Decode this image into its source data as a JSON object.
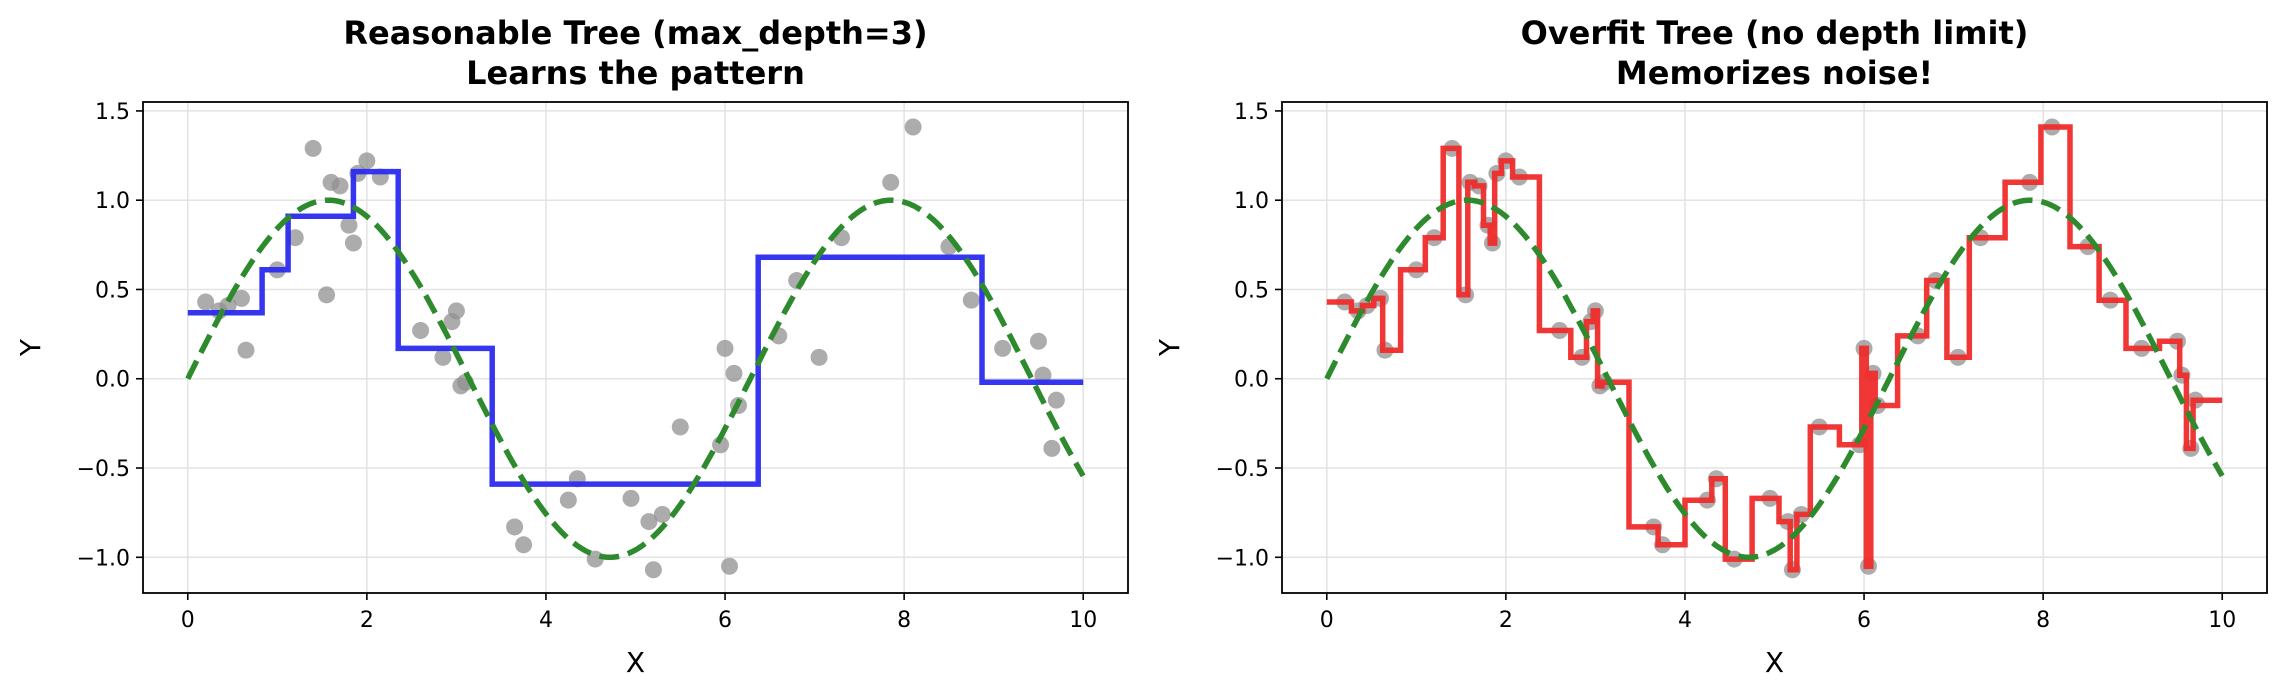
{
  "chart_data": [
    {
      "type": "line",
      "title": [
        "Reasonable Tree (max_depth=3)",
        "Learns the pattern"
      ],
      "xlabel": "X",
      "ylabel": "Y",
      "xlim": [
        -0.5,
        10.5
      ],
      "ylim": [
        -1.2,
        1.55
      ],
      "xticks": [
        0,
        2,
        4,
        6,
        8,
        10
      ],
      "yticks": [
        -1.0,
        -0.5,
        0.0,
        0.5,
        1.0,
        1.5
      ],
      "ytick_labels": [
        "−1.0",
        "−0.5",
        "0.0",
        "0.5",
        "1.0",
        "1.5"
      ],
      "grid": true,
      "colors": {
        "true_function": "#2d8a2d",
        "prediction": "#2b2bf0",
        "points": "#909090"
      },
      "scatter": {
        "x": [
          0.2,
          0.35,
          0.45,
          0.6,
          0.65,
          1.0,
          1.2,
          1.4,
          1.55,
          1.6,
          1.7,
          1.8,
          1.85,
          1.9,
          2.0,
          2.15,
          2.6,
          2.85,
          2.95,
          3.0,
          3.05,
          3.1,
          3.65,
          3.75,
          4.25,
          4.35,
          4.55,
          4.95,
          5.15,
          5.2,
          5.3,
          5.5,
          5.95,
          6.0,
          6.05,
          6.1,
          6.15,
          6.6,
          6.8,
          7.05,
          7.3,
          7.85,
          8.1,
          8.5,
          8.75,
          9.1,
          9.5,
          9.55,
          9.65,
          9.7
        ],
        "y": [
          0.43,
          0.38,
          0.41,
          0.45,
          0.16,
          0.61,
          0.79,
          1.29,
          0.47,
          1.1,
          1.08,
          0.86,
          0.76,
          1.15,
          1.22,
          1.13,
          0.27,
          0.12,
          0.32,
          0.38,
          -0.04,
          -0.02,
          -0.83,
          -0.93,
          -0.68,
          -0.56,
          -1.01,
          -0.67,
          -0.8,
          -1.07,
          -0.76,
          -0.27,
          -0.37,
          0.17,
          -1.05,
          0.03,
          -0.15,
          0.24,
          0.55,
          0.12,
          0.79,
          1.1,
          1.41,
          0.74,
          0.44,
          0.17,
          0.21,
          0.02,
          -0.39,
          -0.12
        ]
      },
      "true_function": {
        "name": "sin",
        "x_range": [
          0,
          10
        ]
      },
      "prediction_step": {
        "x": [
          0,
          0.83,
          0.83,
          1.12,
          1.12,
          1.85,
          1.85,
          2.35,
          2.35,
          3.4,
          3.4,
          6.37,
          6.37,
          8.87,
          8.87,
          10
        ],
        "y": [
          0.37,
          0.37,
          0.61,
          0.61,
          0.91,
          0.91,
          1.16,
          1.16,
          0.17,
          0.17,
          -0.59,
          -0.59,
          0.68,
          0.68,
          -0.02,
          -0.02
        ]
      }
    },
    {
      "type": "line",
      "title": [
        "Overfit Tree (no depth limit)",
        "Memorizes noise!"
      ],
      "xlabel": "X",
      "ylabel": "Y",
      "xlim": [
        -0.5,
        10.5
      ],
      "ylim": [
        -1.2,
        1.55
      ],
      "xticks": [
        0,
        2,
        4,
        6,
        8,
        10
      ],
      "yticks": [
        -1.0,
        -0.5,
        0.0,
        0.5,
        1.0,
        1.5
      ],
      "ytick_labels": [
        "−1.0",
        "−0.5",
        "0.0",
        "0.5",
        "1.0",
        "1.5"
      ],
      "grid": true,
      "colors": {
        "true_function": "#2d8a2d",
        "prediction": "#f02b2b",
        "points": "#909090"
      },
      "scatter": {
        "x": [
          0.2,
          0.35,
          0.45,
          0.6,
          0.65,
          1.0,
          1.2,
          1.4,
          1.55,
          1.6,
          1.7,
          1.8,
          1.85,
          1.9,
          2.0,
          2.15,
          2.6,
          2.85,
          2.95,
          3.0,
          3.05,
          3.1,
          3.65,
          3.75,
          4.25,
          4.35,
          4.55,
          4.95,
          5.15,
          5.2,
          5.3,
          5.5,
          5.95,
          6.0,
          6.05,
          6.1,
          6.15,
          6.6,
          6.8,
          7.05,
          7.3,
          7.85,
          8.1,
          8.5,
          8.75,
          9.1,
          9.5,
          9.55,
          9.65,
          9.7
        ],
        "y": [
          0.43,
          0.38,
          0.41,
          0.45,
          0.16,
          0.61,
          0.79,
          1.29,
          0.47,
          1.1,
          1.08,
          0.86,
          0.76,
          1.15,
          1.22,
          1.13,
          0.27,
          0.12,
          0.32,
          0.38,
          -0.04,
          -0.02,
          -0.83,
          -0.93,
          -0.68,
          -0.56,
          -1.01,
          -0.67,
          -0.8,
          -1.07,
          -0.76,
          -0.27,
          -0.37,
          0.17,
          -1.05,
          0.03,
          -0.15,
          0.24,
          0.55,
          0.12,
          0.79,
          1.1,
          1.41,
          0.74,
          0.44,
          0.17,
          0.21,
          0.02,
          -0.39,
          -0.12
        ]
      },
      "true_function": {
        "name": "sin",
        "x_range": [
          0,
          10
        ]
      },
      "prediction_step_through_points": true,
      "prediction_range": [
        0,
        10
      ]
    }
  ]
}
